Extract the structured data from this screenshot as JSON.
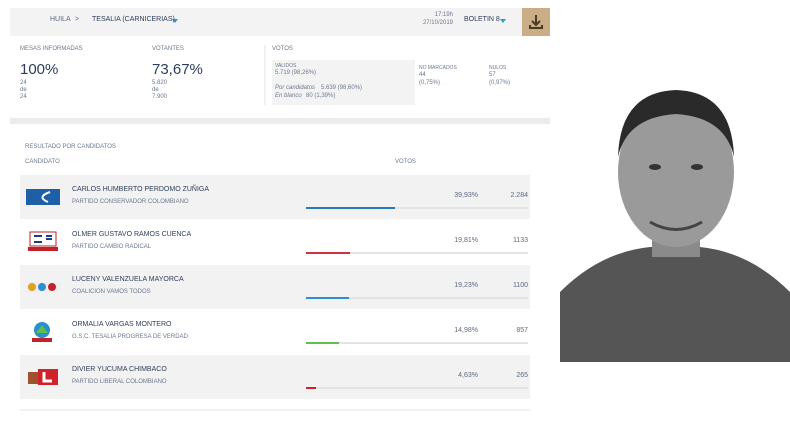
{
  "header": {
    "department": "HUILA",
    "separator": ">",
    "municipality": "TESALIA (CARNICERIAS)",
    "time": "17:19h",
    "date": "27/10/2019",
    "bulletin": "BOLETIN 8"
  },
  "stats": {
    "tables": {
      "label": "MESAS INFORMADAS",
      "percent": "100%",
      "count": "24",
      "of": "de",
      "total": "24"
    },
    "voters": {
      "label": "VOTANTES",
      "percent": "73,67%",
      "count": "5.820",
      "of": "de",
      "total": "7.900"
    },
    "votes": {
      "label": "VOTOS",
      "valid_label": "VALIDOS",
      "valid": "5.719 (98,26%)",
      "candidates_label": "Por candidatos",
      "candidates": "5.639 (98,60%)",
      "blank_label": "En blanco",
      "blank": "80 (1,39%)",
      "unmarked_label": "NO MARCADOS",
      "unmarked": "44",
      "unmarked_pct": "(0,75%)",
      "null_label": "NULOS",
      "null": "57",
      "null_pct": "(0,97%)"
    }
  },
  "results": {
    "title": "RESULTADO POR CANDIDATOS",
    "col_candidate": "CANDIDATO",
    "col_votes": "VOTOS",
    "candidates": [
      {
        "name": "CARLOS HUMBERTO PERDOMO ZUÑIGA",
        "party": "PARTIDO CONSERVADOR COLOMBIANO",
        "percent": 39.93,
        "percent_label": "39,93%",
        "votes": "2.284",
        "color": "#2a7ab8"
      },
      {
        "name": "OLMER GUSTAVO RAMOS CUENCA",
        "party": "PARTIDO CAMBIO RADICAL",
        "percent": 19.81,
        "percent_label": "19,81%",
        "votes": "1133",
        "color": "#d0313c"
      },
      {
        "name": "LUCENY VALENZUELA MAYORCA",
        "party": "COALICION VAMOS TODOS",
        "percent": 19.23,
        "percent_label": "19,23%",
        "votes": "1100",
        "color": "#2a8fd0"
      },
      {
        "name": "ORMALIA VARGAS MONTERO",
        "party": "G.S.C. TESALIA PROGRESA DE VERDAD",
        "percent": 14.98,
        "percent_label": "14,98%",
        "votes": "857",
        "color": "#5cc04a"
      },
      {
        "name": "DIVIER YUCUMA CHIMBACO",
        "party": "PARTIDO LIBERAL COLOMBIANO",
        "percent": 4.63,
        "percent_label": "4,63%",
        "votes": "265",
        "color": "#d0222a"
      }
    ]
  }
}
